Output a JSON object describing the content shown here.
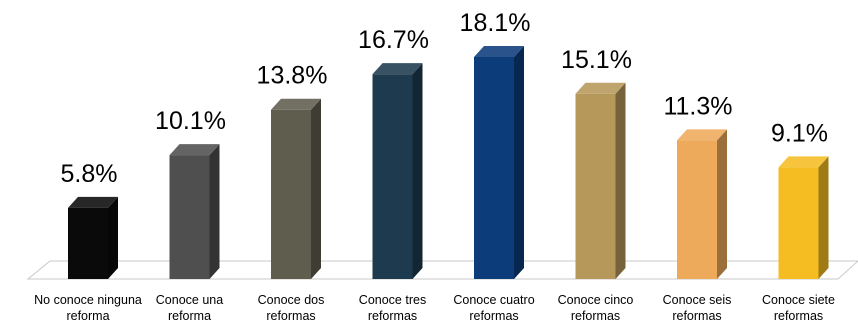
{
  "chart_data": {
    "type": "bar",
    "title": "",
    "xlabel": "",
    "ylabel": "",
    "categories": [
      [
        "No conoce ninguna",
        "reforma"
      ],
      [
        "Conoce una",
        "reforma"
      ],
      [
        "Conoce dos",
        "reformas"
      ],
      [
        "Conoce tres",
        "reformas"
      ],
      [
        "Conoce cuatro",
        "reformas"
      ],
      [
        "Conoce cinco",
        "reformas"
      ],
      [
        "Conoce seis",
        "reformas"
      ],
      [
        "Conoce siete",
        "reformas"
      ]
    ],
    "values": [
      5.8,
      10.1,
      13.8,
      16.7,
      18.1,
      15.1,
      11.3,
      9.1
    ],
    "value_labels": [
      "5.8%",
      "10.1%",
      "13.8%",
      "16.7%",
      "18.1%",
      "15.1%",
      "11.3%",
      "9.1%"
    ],
    "ylim": [
      0,
      18.1
    ],
    "grid": false,
    "legend": "none",
    "bar_style": "3d",
    "colors": [
      "#0a0a0a",
      "#4f4f4f",
      "#5f5d4e",
      "#1d3a4f",
      "#0d3c7b",
      "#b6985a",
      "#eeaa5b",
      "#f5bd22"
    ]
  }
}
